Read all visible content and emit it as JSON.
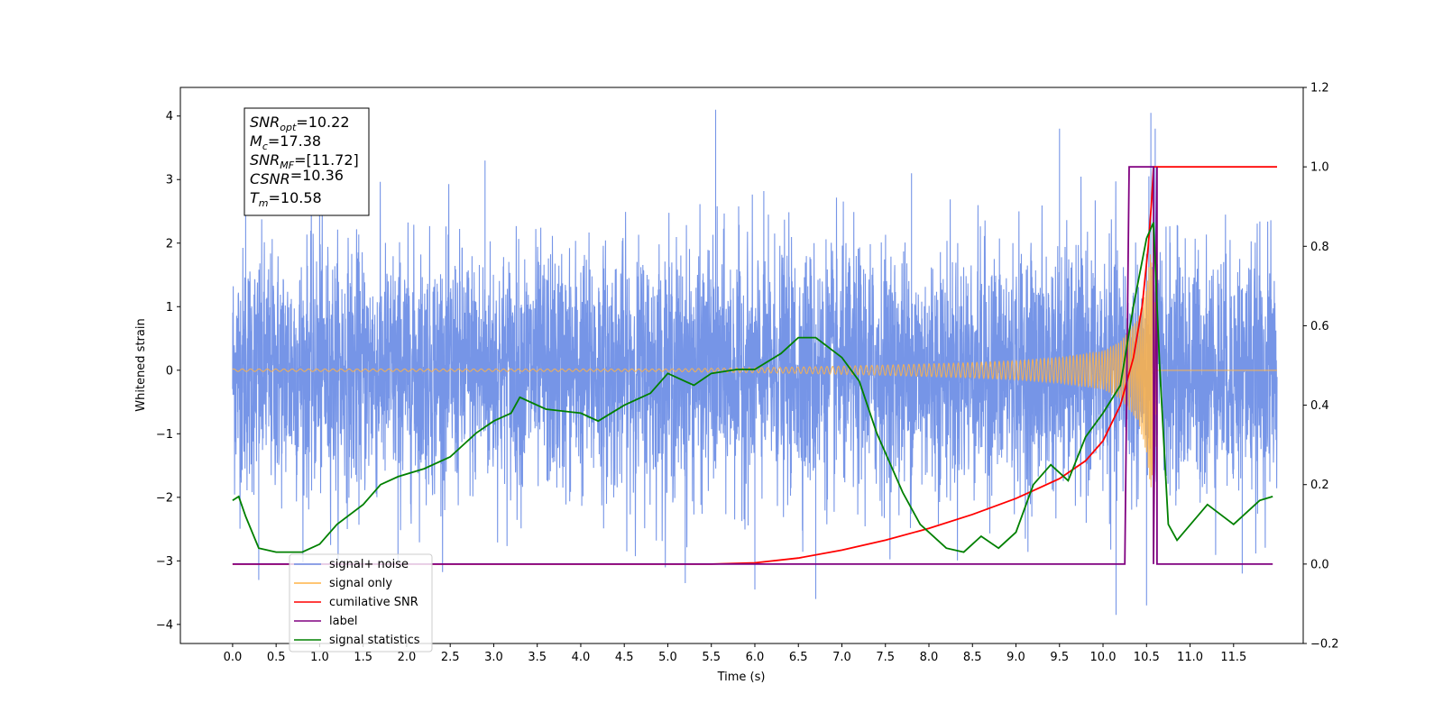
{
  "chart_data": {
    "type": "line",
    "title": "",
    "xlabel": "Time (s)",
    "ylabel": "Whitened strain",
    "y2label": "",
    "xlim": [
      -0.6,
      12.3
    ],
    "ylim": [
      -4.3,
      4.45
    ],
    "y2lim": [
      -0.2,
      1.2
    ],
    "x_ticks": [
      "0.0",
      "0.5",
      "1.0",
      "1.5",
      "2.0",
      "2.5",
      "3.0",
      "3.5",
      "4.0",
      "4.5",
      "5.0",
      "5.5",
      "6.0",
      "6.5",
      "7.0",
      "7.5",
      "8.0",
      "8.5",
      "9.0",
      "9.5",
      "10.0",
      "10.5",
      "11.0",
      "11.5"
    ],
    "y_ticks": [
      "4",
      "3",
      "2",
      "1",
      "0",
      "−1",
      "−2",
      "−3",
      "−4"
    ],
    "y2_ticks": [
      "1.2",
      "1.0",
      "0.8",
      "0.6",
      "0.4",
      "0.2",
      "0.0",
      "−0.2"
    ],
    "grid": false,
    "legend_position": "lower-left",
    "annotation": [
      {
        "main": "SNR",
        "sub": "opt",
        "value": "=10.22"
      },
      {
        "main": "M",
        "sub": "c",
        "value": "=17.38"
      },
      {
        "main": "SNR",
        "sub": "MF",
        "value": "=[11.72]"
      },
      {
        "main": "CSNR",
        "sub": "",
        "value": "=10.36"
      },
      {
        "main": "T",
        "sub": "m",
        "value": "=10.58"
      }
    ],
    "series": [
      {
        "name": "signal+ noise",
        "color": "#6f8fe6",
        "axis": "left",
        "t_start": 0.0,
        "t_end": 12.0,
        "envelope_upper_typical": 1.6,
        "envelope_lower_typical": -1.6,
        "peak_spikes": [
          [
            0.15,
            3.45
          ],
          [
            1.0,
            3.3
          ],
          [
            2.9,
            3.3
          ],
          [
            5.55,
            4.1
          ],
          [
            9.5,
            3.8
          ],
          [
            10.55,
            4.05
          ],
          [
            10.6,
            3.8
          ],
          [
            7.8,
            3.1
          ]
        ],
        "trough_spikes": [
          [
            0.3,
            -3.3
          ],
          [
            1.9,
            -3.0
          ],
          [
            5.2,
            -3.35
          ],
          [
            6.0,
            -3.45
          ],
          [
            6.7,
            -3.6
          ],
          [
            10.15,
            -3.85
          ],
          [
            10.5,
            -3.7
          ],
          [
            11.6,
            -3.2
          ]
        ]
      },
      {
        "name": "signal only",
        "color": "#ffb347",
        "axis": "left",
        "envelope": [
          [
            0,
            0.02
          ],
          [
            5.0,
            0.02
          ],
          [
            6.5,
            0.05
          ],
          [
            7.5,
            0.08
          ],
          [
            8.5,
            0.12
          ],
          [
            9.0,
            0.15
          ],
          [
            9.5,
            0.2
          ],
          [
            10.0,
            0.3
          ],
          [
            10.2,
            0.45
          ],
          [
            10.4,
            0.8
          ],
          [
            10.5,
            1.3
          ],
          [
            10.55,
            1.9
          ],
          [
            10.6,
            1.2
          ],
          [
            10.62,
            0.02
          ],
          [
            12.0,
            0.02
          ]
        ]
      },
      {
        "name": "cumilative SNR",
        "color": "#ff0000",
        "axis": "right",
        "points": [
          [
            0,
            0
          ],
          [
            5.5,
            0
          ],
          [
            6.0,
            0.003
          ],
          [
            6.5,
            0.015
          ],
          [
            7.0,
            0.035
          ],
          [
            7.5,
            0.06
          ],
          [
            8.0,
            0.09
          ],
          [
            8.5,
            0.125
          ],
          [
            9.0,
            0.165
          ],
          [
            9.5,
            0.215
          ],
          [
            9.8,
            0.26
          ],
          [
            10.0,
            0.31
          ],
          [
            10.2,
            0.4
          ],
          [
            10.35,
            0.52
          ],
          [
            10.45,
            0.65
          ],
          [
            10.52,
            0.8
          ],
          [
            10.56,
            0.92
          ],
          [
            10.58,
            1.0
          ],
          [
            12.0,
            1.0
          ]
        ]
      },
      {
        "name": "label",
        "color": "#800080",
        "axis": "right",
        "points": [
          [
            0,
            0
          ],
          [
            10.25,
            0
          ],
          [
            10.3,
            1.0
          ],
          [
            10.58,
            1.0
          ],
          [
            10.58,
            0.0
          ],
          [
            10.62,
            1.0
          ],
          [
            10.62,
            0.0
          ],
          [
            11.95,
            0
          ]
        ]
      },
      {
        "name": "signal statistics",
        "color": "#008000",
        "axis": "right",
        "points": [
          [
            0,
            0.16
          ],
          [
            0.07,
            0.17
          ],
          [
            0.15,
            0.12
          ],
          [
            0.3,
            0.04
          ],
          [
            0.5,
            0.03
          ],
          [
            0.8,
            0.03
          ],
          [
            1.0,
            0.05
          ],
          [
            1.2,
            0.1
          ],
          [
            1.5,
            0.15
          ],
          [
            1.7,
            0.2
          ],
          [
            1.9,
            0.22
          ],
          [
            2.2,
            0.24
          ],
          [
            2.5,
            0.27
          ],
          [
            2.8,
            0.33
          ],
          [
            3.0,
            0.36
          ],
          [
            3.2,
            0.38
          ],
          [
            3.3,
            0.42
          ],
          [
            3.6,
            0.39
          ],
          [
            4.0,
            0.38
          ],
          [
            4.2,
            0.36
          ],
          [
            4.5,
            0.4
          ],
          [
            4.8,
            0.43
          ],
          [
            5.0,
            0.48
          ],
          [
            5.3,
            0.45
          ],
          [
            5.5,
            0.48
          ],
          [
            5.8,
            0.49
          ],
          [
            6.0,
            0.49
          ],
          [
            6.3,
            0.53
          ],
          [
            6.5,
            0.57
          ],
          [
            6.7,
            0.57
          ],
          [
            7.0,
            0.52
          ],
          [
            7.2,
            0.46
          ],
          [
            7.4,
            0.33
          ],
          [
            7.7,
            0.18
          ],
          [
            7.9,
            0.1
          ],
          [
            8.2,
            0.04
          ],
          [
            8.4,
            0.03
          ],
          [
            8.6,
            0.07
          ],
          [
            8.8,
            0.04
          ],
          [
            9.0,
            0.08
          ],
          [
            9.2,
            0.2
          ],
          [
            9.4,
            0.25
          ],
          [
            9.6,
            0.21
          ],
          [
            9.8,
            0.32
          ],
          [
            10.0,
            0.38
          ],
          [
            10.2,
            0.45
          ],
          [
            10.35,
            0.65
          ],
          [
            10.5,
            0.82
          ],
          [
            10.58,
            0.86
          ],
          [
            10.65,
            0.5
          ],
          [
            10.75,
            0.1
          ],
          [
            10.85,
            0.06
          ],
          [
            11.2,
            0.15
          ],
          [
            11.5,
            0.1
          ],
          [
            11.8,
            0.16
          ],
          [
            11.95,
            0.17
          ]
        ]
      }
    ]
  }
}
